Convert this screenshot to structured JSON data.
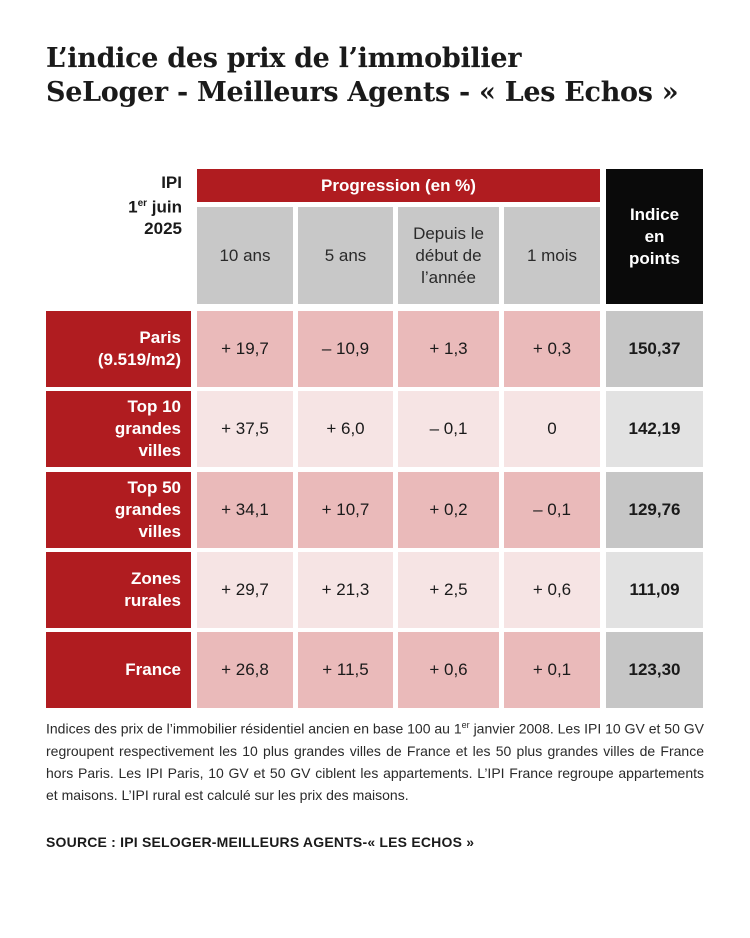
{
  "title": {
    "line1": "L’indice des prix de l’immobilier",
    "line2": "SeLoger - Meilleurs Agents - « Les Echos »"
  },
  "header": {
    "ipi_line1": "IPI",
    "ipi_day": "1",
    "ipi_sup": "er",
    "ipi_month": " juin",
    "ipi_year": "2025",
    "progression": "Progression (en %)",
    "columns": [
      "10 ans",
      "5 ans",
      "Depuis le début de l’année",
      "1 mois"
    ],
    "indice_lines": [
      "Indice",
      "en",
      "points"
    ]
  },
  "colors": {
    "brand_red": "#b01c20",
    "header_black": "#0a0a0a",
    "header_grey": "#c8c8c8",
    "cell_pink_dark": "#eababa",
    "cell_pink_light": "#f6e4e4",
    "cell_grey_dark": "#c6c6c6",
    "cell_grey_light": "#e2e2e2"
  },
  "chart_data": {
    "type": "table",
    "title": "L’indice des prix de l’immobilier SeLoger - Meilleurs Agents - « Les Echos »",
    "columns": [
      "10 ans",
      "5 ans",
      "Depuis le début de l’année",
      "1 mois",
      "Indice en points"
    ],
    "rows": [
      {
        "label_lines": [
          "Paris",
          "(9.519/m2)"
        ],
        "values": [
          "+ 19,7",
          "– 10,9",
          "+ 1,3",
          "+ 0,3"
        ],
        "indice": "150,37"
      },
      {
        "label_lines": [
          "Top 10",
          "grandes",
          "villes"
        ],
        "values": [
          "+ 37,5",
          "+ 6,0",
          "– 0,1",
          "0"
        ],
        "indice": "142,19"
      },
      {
        "label_lines": [
          "Top 50",
          "grandes",
          "villes"
        ],
        "values": [
          "+ 34,1",
          "+ 10,7",
          "+ 0,2",
          "– 0,1"
        ],
        "indice": "129,76"
      },
      {
        "label_lines": [
          "Zones",
          "rurales"
        ],
        "values": [
          "+ 29,7",
          "+ 21,3",
          "+ 2,5",
          "+ 0,6"
        ],
        "indice": "111,09"
      },
      {
        "label_lines": [
          "France"
        ],
        "values": [
          "+ 26,8",
          "+ 11,5",
          "+ 0,6",
          "+ 0,1"
        ],
        "indice": "123,30"
      }
    ]
  },
  "note": {
    "part1": "Indices des prix de l’immobilier résidentiel ancien en base 100 au 1",
    "sup": "er",
    "part2": " janvier 2008. Les IPI 10 GV et 50 GV regroupent respectivement les 10 plus grandes villes de France et les 50 plus grandes villes de France hors Paris. Les IPI Paris, 10 GV et 50 GV ciblent les appartements. L’IPI France regroupe appartements et maisons. L’IPI rural est calculé sur les prix des maisons."
  },
  "source": "SOURCE : IPI SELOGER-MEILLEURS AGENTS-« LES ECHOS »"
}
